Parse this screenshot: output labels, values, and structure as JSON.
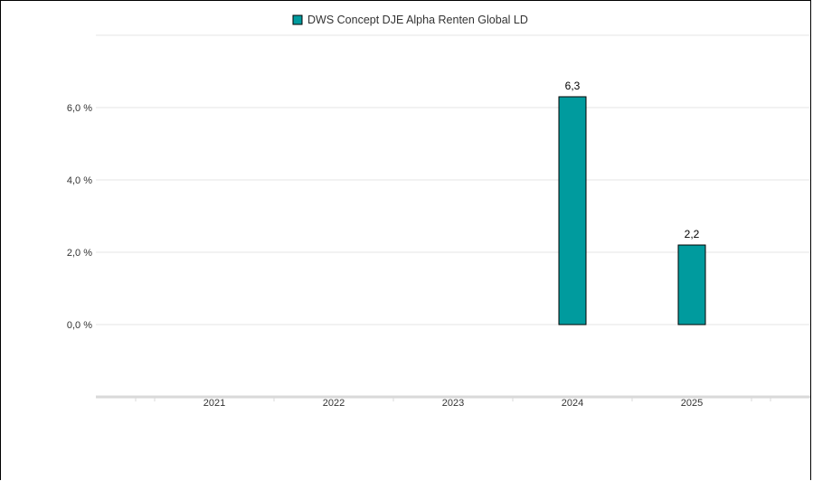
{
  "chart_data": {
    "type": "bar",
    "categories": [
      "2021",
      "2022",
      "2023",
      "2024",
      "2025"
    ],
    "series": [
      {
        "name": "DWS Concept DJE Alpha Renten Global LD",
        "values": [
          null,
          null,
          null,
          6.3,
          2.2
        ]
      }
    ],
    "data_labels": [
      "",
      "",
      "",
      "6,3",
      "2,2"
    ],
    "yticks": [
      0,
      2,
      4,
      6
    ],
    "ytick_labels": [
      "0,0 %",
      "2,0 %",
      "4,0 %",
      "6,0 %"
    ],
    "ylim": [
      -2,
      8
    ],
    "legend_position": "top-center",
    "grid": true,
    "colors": {
      "bar": "#009b9e",
      "bar_border": "#000000",
      "grid": "#e6e6e6",
      "axis": "#d9d9d9",
      "text": "#333333"
    }
  }
}
